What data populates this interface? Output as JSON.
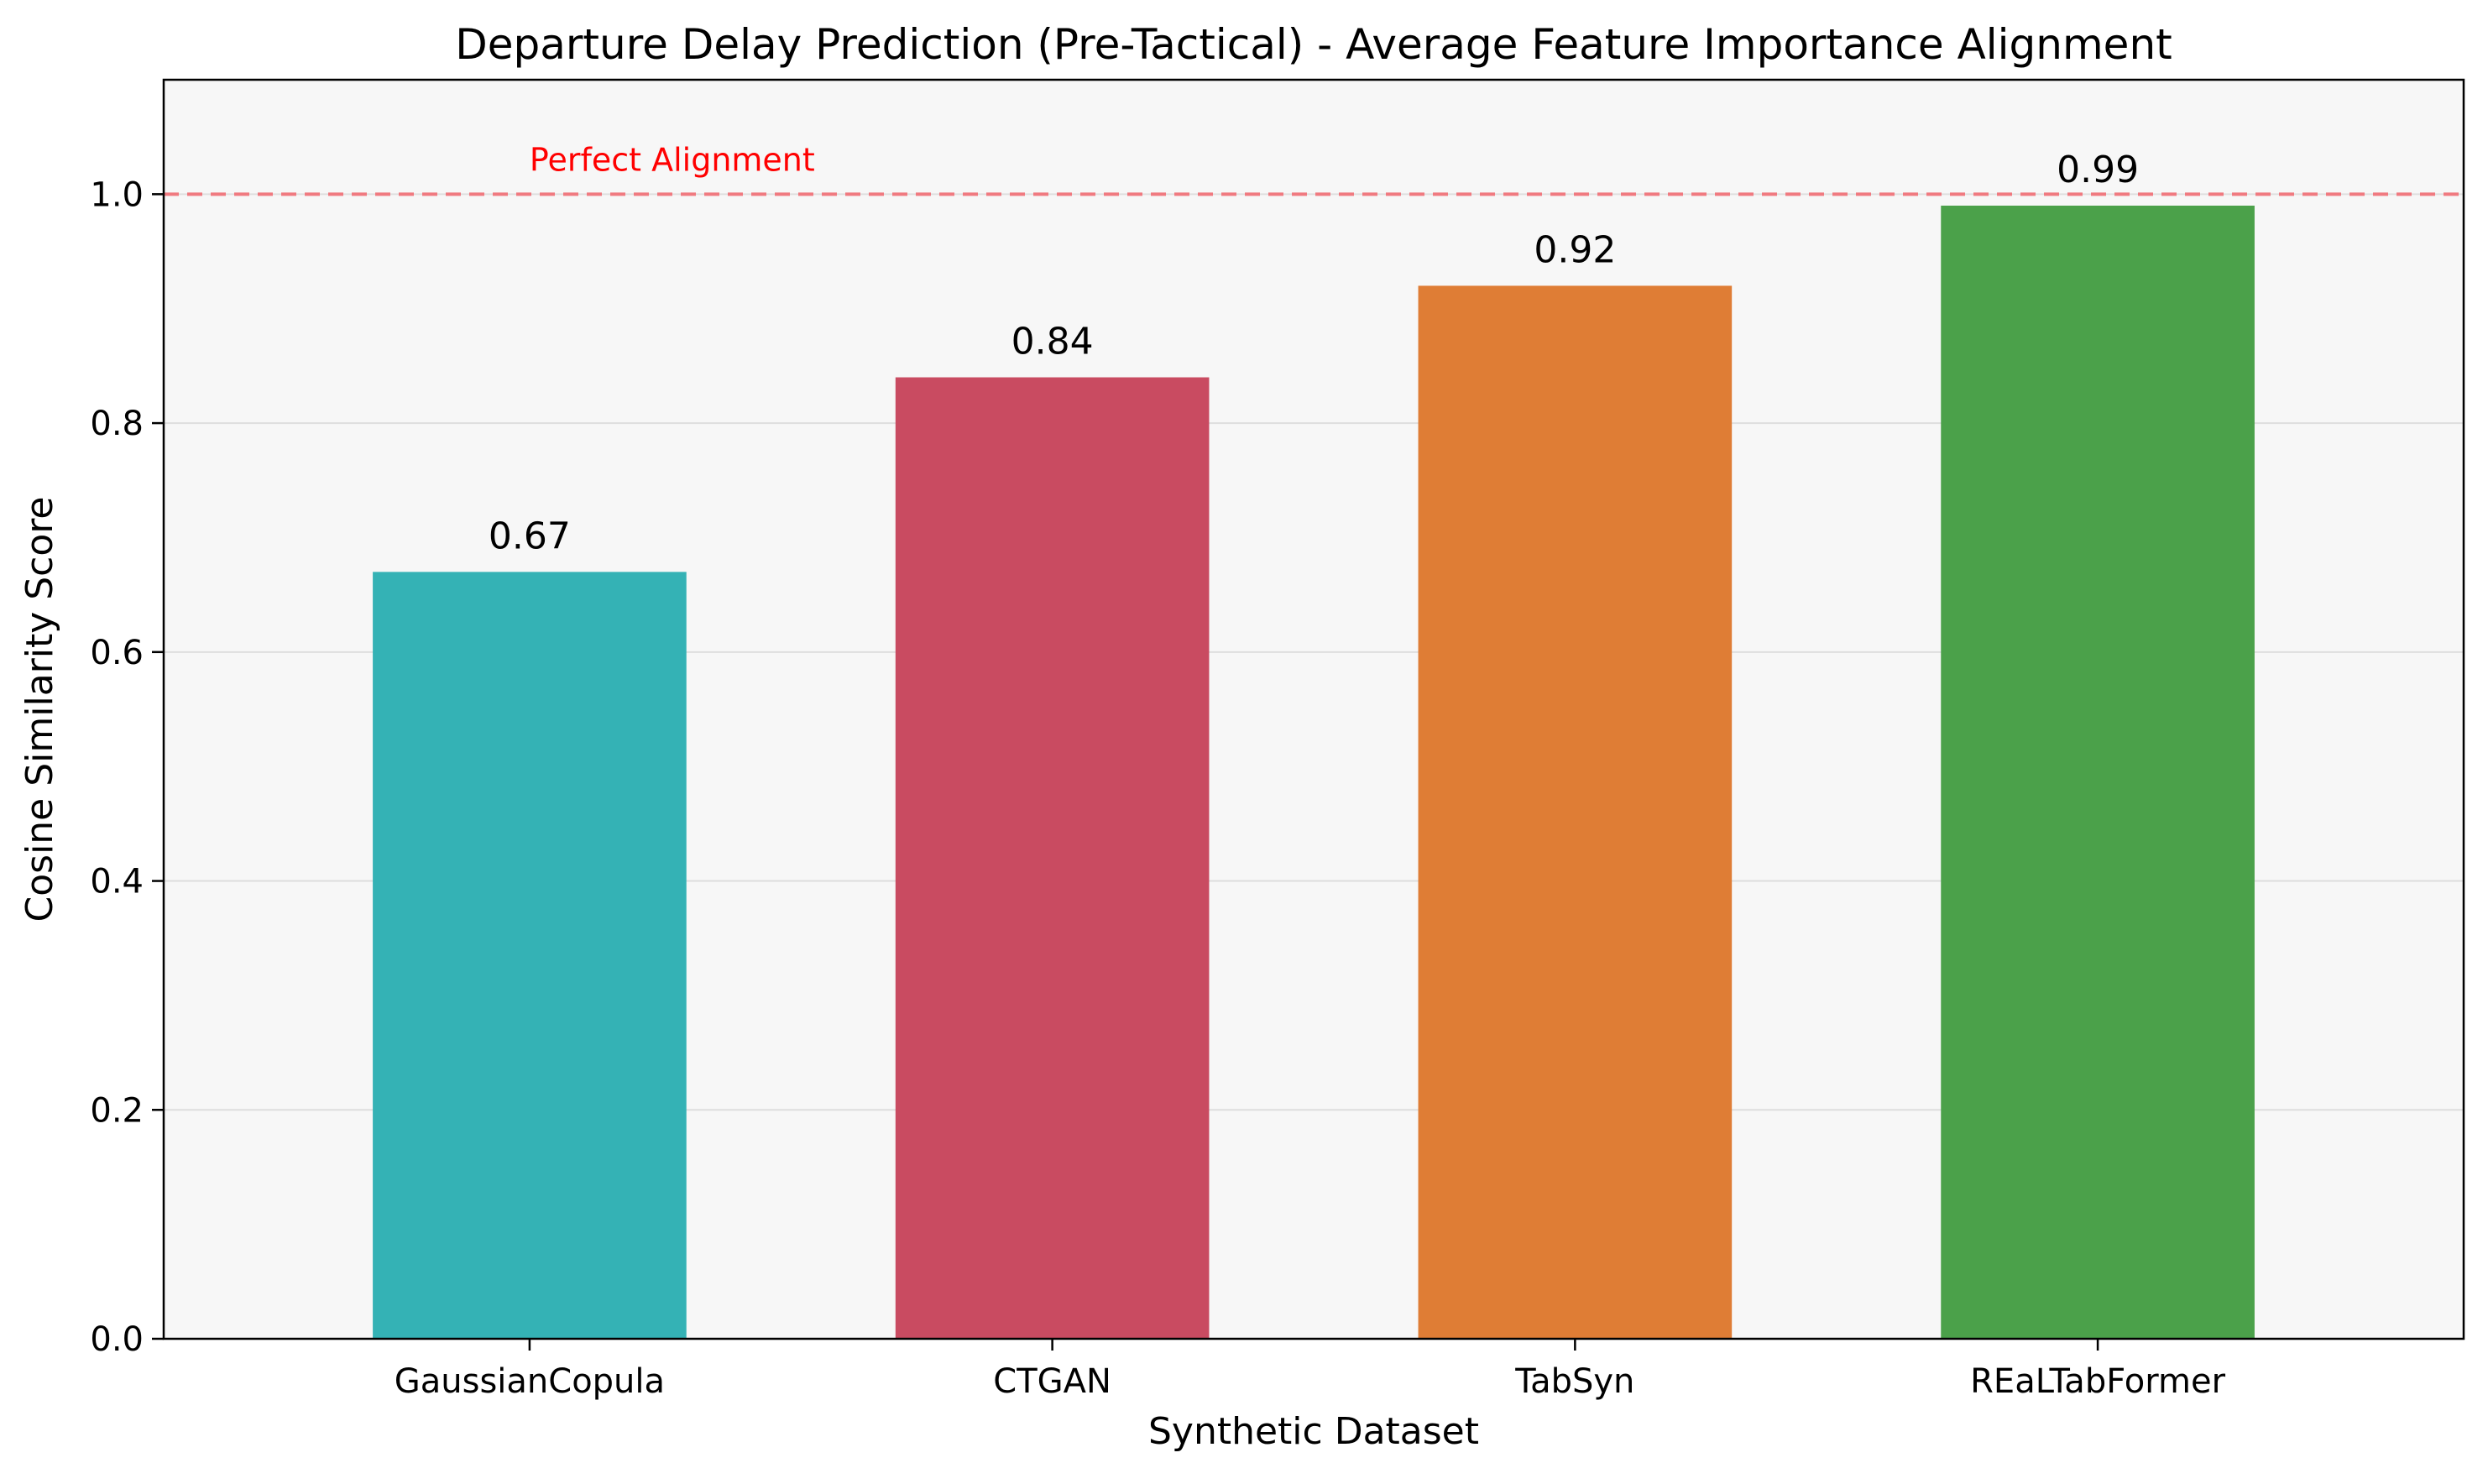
{
  "chart_data": {
    "type": "bar",
    "title": "Departure Delay Prediction (Pre-Tactical) - Average Feature Importance Alignment",
    "xlabel": "Synthetic Dataset",
    "ylabel": "Cosine Similarity Score",
    "categories": [
      "GaussianCopula",
      "CTGAN",
      "TabSyn",
      "REaLTabFormer"
    ],
    "values": [
      0.67,
      0.84,
      0.92,
      0.99
    ],
    "value_labels": [
      "0.67",
      "0.84",
      "0.92",
      "0.99"
    ],
    "colors": [
      "#34b2b5",
      "#c94b61",
      "#df7d35",
      "#4ba14a"
    ],
    "ylim": [
      0,
      1.1
    ],
    "yticks": [
      0.0,
      0.2,
      0.4,
      0.6,
      0.8,
      1.0
    ],
    "ytick_labels": [
      "0.0",
      "0.2",
      "0.4",
      "0.6",
      "0.8",
      "1.0"
    ],
    "grid": "horizontal",
    "background_color": "#f7f7f7",
    "reference_line": {
      "value": 1.0,
      "label": "Perfect Alignment",
      "color": "#f07a80",
      "label_color": "#ff0000",
      "style": "dashed"
    }
  }
}
